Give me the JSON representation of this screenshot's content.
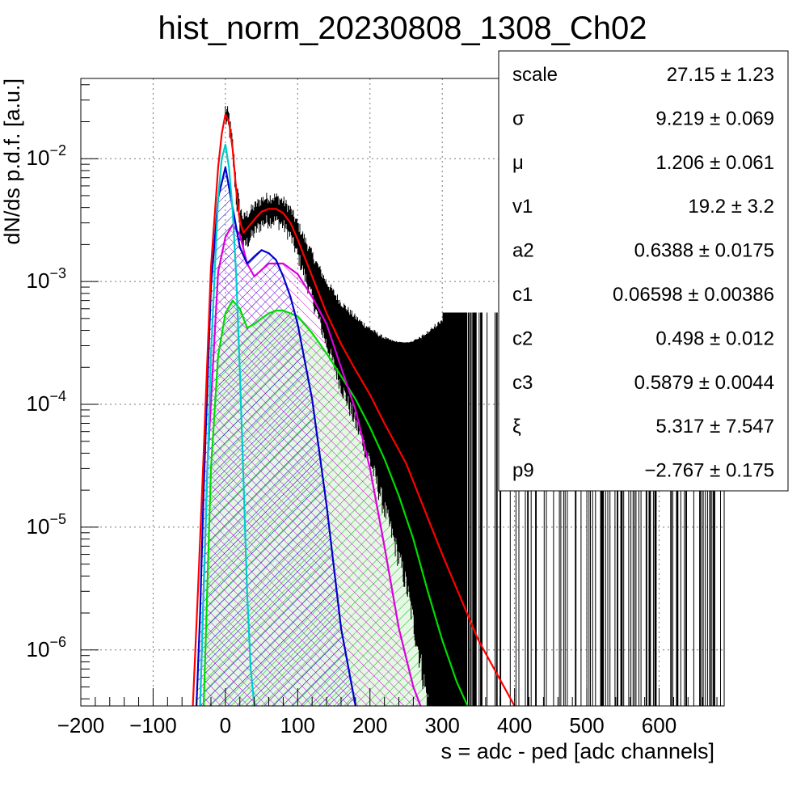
{
  "chart_data": {
    "type": "line",
    "title": "hist_norm_20230808_1308_Ch02",
    "xlabel": "s = adc - ped [adc channels]",
    "ylabel": "dN/ds p.d.f. [a.u.]",
    "xlim": [
      -200,
      690
    ],
    "ylim": [
      3.5e-07,
      0.045
    ],
    "yscale": "log",
    "grid": true,
    "x_ticks": [
      -200,
      -100,
      0,
      100,
      200,
      300,
      400,
      500,
      600
    ],
    "x_tick_labels": [
      "−200",
      "−100",
      "0",
      "100",
      "200",
      "300",
      "400",
      "500",
      "600"
    ],
    "y_ticks": [
      1e-06,
      1e-05,
      0.0001,
      0.001,
      0.01
    ],
    "y_tick_base": "10",
    "y_tick_exponents": [
      "−6",
      "−5",
      "−4",
      "−3",
      "−2"
    ],
    "series": [
      {
        "color": "#ff0000",
        "x": [
          -45,
          -38,
          -30,
          -20,
          -10,
          -5,
          0,
          5,
          10,
          15,
          20,
          25,
          30,
          40,
          50,
          60,
          70,
          80,
          90,
          100,
          120,
          140,
          160,
          180,
          200,
          220,
          250,
          300,
          350,
          400
        ],
        "values": [
          3.5e-07,
          3e-06,
          4e-05,
          0.0013,
          0.0085,
          0.016,
          0.023,
          0.02,
          0.012,
          0.0055,
          0.0031,
          0.0025,
          0.0027,
          0.0032,
          0.0037,
          0.0039,
          0.0039,
          0.0036,
          0.003,
          0.0022,
          0.0011,
          0.00055,
          0.00031,
          0.00019,
          0.00012,
          7e-05,
          3.3e-05,
          6e-06,
          1.2e-06,
          3.5e-07
        ]
      },
      {
        "color": "#0000cc",
        "hatched": true,
        "x": [
          -40,
          -35,
          -30,
          -20,
          -10,
          0,
          10,
          20,
          30,
          40,
          50,
          60,
          70,
          80,
          90,
          100,
          120,
          140,
          160,
          180
        ],
        "values": [
          3.5e-07,
          2e-06,
          2e-05,
          0.0009,
          0.0048,
          0.0085,
          0.004,
          0.0019,
          0.0014,
          0.0016,
          0.0018,
          0.0017,
          0.0015,
          0.0011,
          0.00075,
          0.00045,
          0.00011,
          1.5e-05,
          1.5e-06,
          3.5e-07
        ]
      },
      {
        "color": "#00cccc",
        "x": [
          -35,
          -30,
          -20,
          -10,
          -5,
          0,
          5,
          10,
          15,
          20,
          25,
          30,
          35,
          40
        ],
        "values": [
          3.5e-07,
          3e-06,
          0.00025,
          0.0048,
          0.01,
          0.013,
          0.0085,
          0.0038,
          0.0011,
          0.00018,
          2.5e-05,
          3e-06,
          7e-07,
          3.5e-07
        ]
      },
      {
        "color": "#dd00dd",
        "hatched": true,
        "x": [
          -35,
          -25,
          -10,
          0,
          10,
          20,
          30,
          40,
          60,
          80,
          100,
          120,
          140,
          160,
          180,
          200,
          220,
          240,
          260,
          270
        ],
        "values": [
          3.5e-07,
          3e-05,
          0.0012,
          0.0023,
          0.0029,
          0.0024,
          0.0014,
          0.0011,
          0.0014,
          0.0014,
          0.00115,
          0.00075,
          0.00045,
          0.0002,
          9e-05,
          3e-05,
          7e-06,
          1.5e-06,
          5e-07,
          3.5e-07
        ]
      },
      {
        "color": "#00dd00",
        "hatched": true,
        "x": [
          -30,
          -20,
          -10,
          0,
          10,
          20,
          30,
          40,
          50,
          60,
          70,
          80,
          90,
          100,
          120,
          140,
          160,
          180,
          200,
          220,
          240,
          260,
          280,
          300,
          320,
          335
        ],
        "values": [
          3.5e-07,
          3e-05,
          0.00025,
          0.00055,
          0.0007,
          0.0006,
          0.00042,
          0.00045,
          0.0005,
          0.00055,
          0.00058,
          0.00058,
          0.00055,
          0.00052,
          0.00038,
          0.00026,
          0.00017,
          0.00011,
          6.5e-05,
          3.6e-05,
          1.8e-05,
          8e-06,
          3e-06,
          1.2e-06,
          5.5e-07,
          3.5e-07
        ]
      }
    ],
    "data_histogram": {
      "color": "#000000",
      "x_start": 0,
      "x_end": 690,
      "noise_floor": 3.8e-06
    }
  },
  "stats_box": [
    {
      "name": "scale",
      "value": "27.15 ± 1.23"
    },
    {
      "name": "σ",
      "value": "9.219 ± 0.069"
    },
    {
      "name": "μ",
      "value": "1.206 ± 0.061"
    },
    {
      "name": "v1",
      "value": "19.2 ± 3.2"
    },
    {
      "name": "a2",
      "value": "0.6388 ± 0.0175"
    },
    {
      "name": "c1",
      "value": "0.06598 ± 0.00386"
    },
    {
      "name": "c2",
      "value": "0.498 ± 0.012"
    },
    {
      "name": "c3",
      "value": "0.5879 ± 0.0044"
    },
    {
      "name": "ξ",
      "value": "5.317 ± 7.547"
    },
    {
      "name": "p9",
      "value": "−2.767 ± 0.175"
    }
  ]
}
